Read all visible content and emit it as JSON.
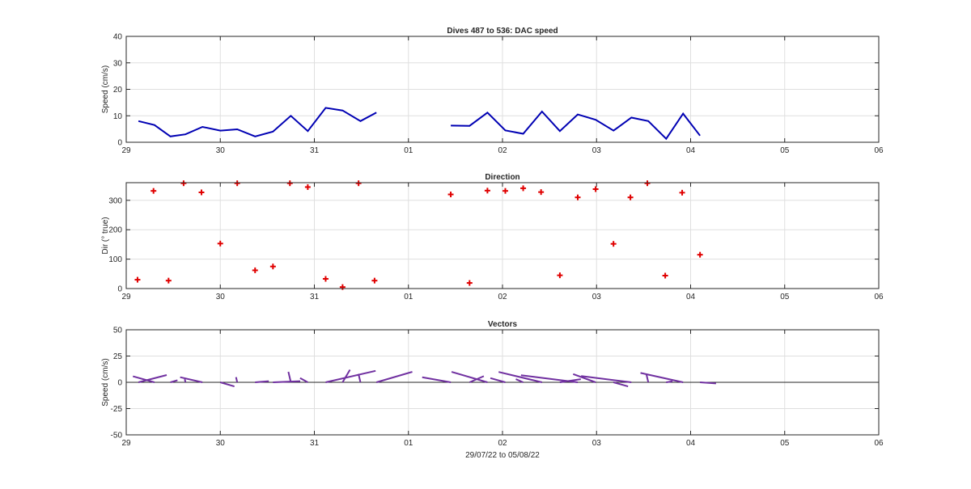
{
  "figure": {
    "xlabel": "29/07/22 to 05/08/22"
  },
  "chart_data": [
    {
      "type": "line",
      "title": "Dives 487 to 536: DAC speed",
      "ylabel": "Speed (cm/s)",
      "xlabel": "",
      "xlim": [
        29,
        37
      ],
      "ylim": [
        0,
        40
      ],
      "yticks": [
        0,
        10,
        20,
        30,
        40
      ],
      "xticks": [
        29,
        30,
        31,
        32,
        33,
        34,
        35,
        36,
        37
      ],
      "xticklabels": [
        "29",
        "30",
        "31",
        "01",
        "02",
        "03",
        "04",
        "05",
        "06"
      ],
      "grid": true,
      "color": "#0000b3",
      "series": [
        {
          "segments": [
            {
              "x": [
                29.13,
                29.3,
                29.47,
                29.63,
                29.81,
                30.0,
                30.18,
                30.37,
                30.56,
                30.75,
                30.93,
                31.12,
                31.3,
                31.49,
                31.66
              ],
              "y": [
                8.0,
                6.5,
                2.2,
                3.0,
                5.8,
                4.4,
                4.9,
                2.2,
                4.0,
                10.0,
                4.2,
                13.0,
                12.0,
                8.0,
                11.2
              ]
            },
            {
              "x": [
                32.45,
                32.65,
                32.84,
                33.03,
                33.22,
                33.42,
                33.61,
                33.8,
                33.99,
                34.18,
                34.37,
                34.55,
                34.74,
                34.92,
                35.1
              ],
              "y": [
                6.3,
                6.2,
                11.2,
                4.5,
                3.2,
                11.6,
                4.2,
                10.5,
                8.5,
                4.4,
                9.3,
                8.0,
                1.3,
                10.8,
                2.5
              ]
            }
          ]
        }
      ]
    },
    {
      "type": "scatter",
      "title": "Direction",
      "ylabel": "Dir (° true)",
      "xlabel": "",
      "xlim": [
        29,
        37
      ],
      "ylim": [
        0,
        360
      ],
      "yticks": [
        0,
        100,
        200,
        300
      ],
      "xticks": [
        29,
        30,
        31,
        32,
        33,
        34,
        35,
        36,
        37
      ],
      "xticklabels": [
        "29",
        "30",
        "31",
        "01",
        "02",
        "03",
        "04",
        "05",
        "06"
      ],
      "grid": true,
      "marker": "+",
      "color": "#e00000",
      "points": [
        [
          29.12,
          30
        ],
        [
          29.29,
          332
        ],
        [
          29.45,
          27
        ],
        [
          29.61,
          358
        ],
        [
          29.8,
          327
        ],
        [
          30.0,
          153
        ],
        [
          30.18,
          358
        ],
        [
          30.37,
          62
        ],
        [
          30.56,
          75
        ],
        [
          30.74,
          358
        ],
        [
          30.93,
          345
        ],
        [
          31.12,
          33
        ],
        [
          31.3,
          5
        ],
        [
          31.47,
          358
        ],
        [
          31.64,
          27
        ],
        [
          32.45,
          320
        ],
        [
          32.65,
          19
        ],
        [
          32.84,
          333
        ],
        [
          33.03,
          332
        ],
        [
          33.22,
          341
        ],
        [
          33.41,
          328
        ],
        [
          33.61,
          45
        ],
        [
          33.8,
          310
        ],
        [
          33.99,
          338
        ],
        [
          34.18,
          152
        ],
        [
          34.36,
          310
        ],
        [
          34.54,
          358
        ],
        [
          34.73,
          44
        ],
        [
          34.91,
          326
        ],
        [
          35.1,
          115
        ]
      ]
    },
    {
      "type": "stick",
      "title": "Vectors",
      "ylabel": "Speed (cm/s)",
      "xlabel": "29/07/22 to 05/08/22",
      "xlim": [
        29,
        37
      ],
      "ylim": [
        -50,
        50
      ],
      "yticks": [
        -50,
        -25,
        0,
        25,
        50
      ],
      "xticks": [
        29,
        30,
        31,
        32,
        33,
        34,
        35,
        36,
        37
      ],
      "xticklabels": [
        "29",
        "30",
        "31",
        "01",
        "02",
        "03",
        "04",
        "05",
        "06"
      ],
      "grid": true,
      "color": "#7030a0",
      "vectors": [
        [
          29.13,
          8.0,
          30
        ],
        [
          29.3,
          6.5,
          332
        ],
        [
          29.47,
          2.2,
          27
        ],
        [
          29.63,
          3.0,
          358
        ],
        [
          29.81,
          5.8,
          327
        ],
        [
          30.0,
          4.4,
          153
        ],
        [
          30.18,
          4.9,
          358
        ],
        [
          30.37,
          2.2,
          62
        ],
        [
          30.56,
          4.0,
          75
        ],
        [
          30.75,
          10.0,
          358
        ],
        [
          30.93,
          4.2,
          345
        ],
        [
          31.12,
          13.0,
          33
        ],
        [
          31.3,
          12.0,
          5
        ],
        [
          31.49,
          8.0,
          358
        ],
        [
          31.66,
          11.2,
          27
        ],
        [
          32.45,
          6.3,
          320
        ],
        [
          32.65,
          6.2,
          19
        ],
        [
          32.84,
          11.2,
          333
        ],
        [
          33.03,
          4.5,
          332
        ],
        [
          33.22,
          3.2,
          341
        ],
        [
          33.42,
          11.6,
          328
        ],
        [
          33.61,
          4.2,
          45
        ],
        [
          33.8,
          10.5,
          310
        ],
        [
          33.99,
          8.5,
          338
        ],
        [
          34.18,
          4.4,
          152
        ],
        [
          34.37,
          9.3,
          310
        ],
        [
          34.55,
          8.0,
          358
        ],
        [
          34.74,
          1.3,
          44
        ],
        [
          34.92,
          10.8,
          326
        ],
        [
          35.1,
          2.5,
          115
        ]
      ]
    }
  ]
}
